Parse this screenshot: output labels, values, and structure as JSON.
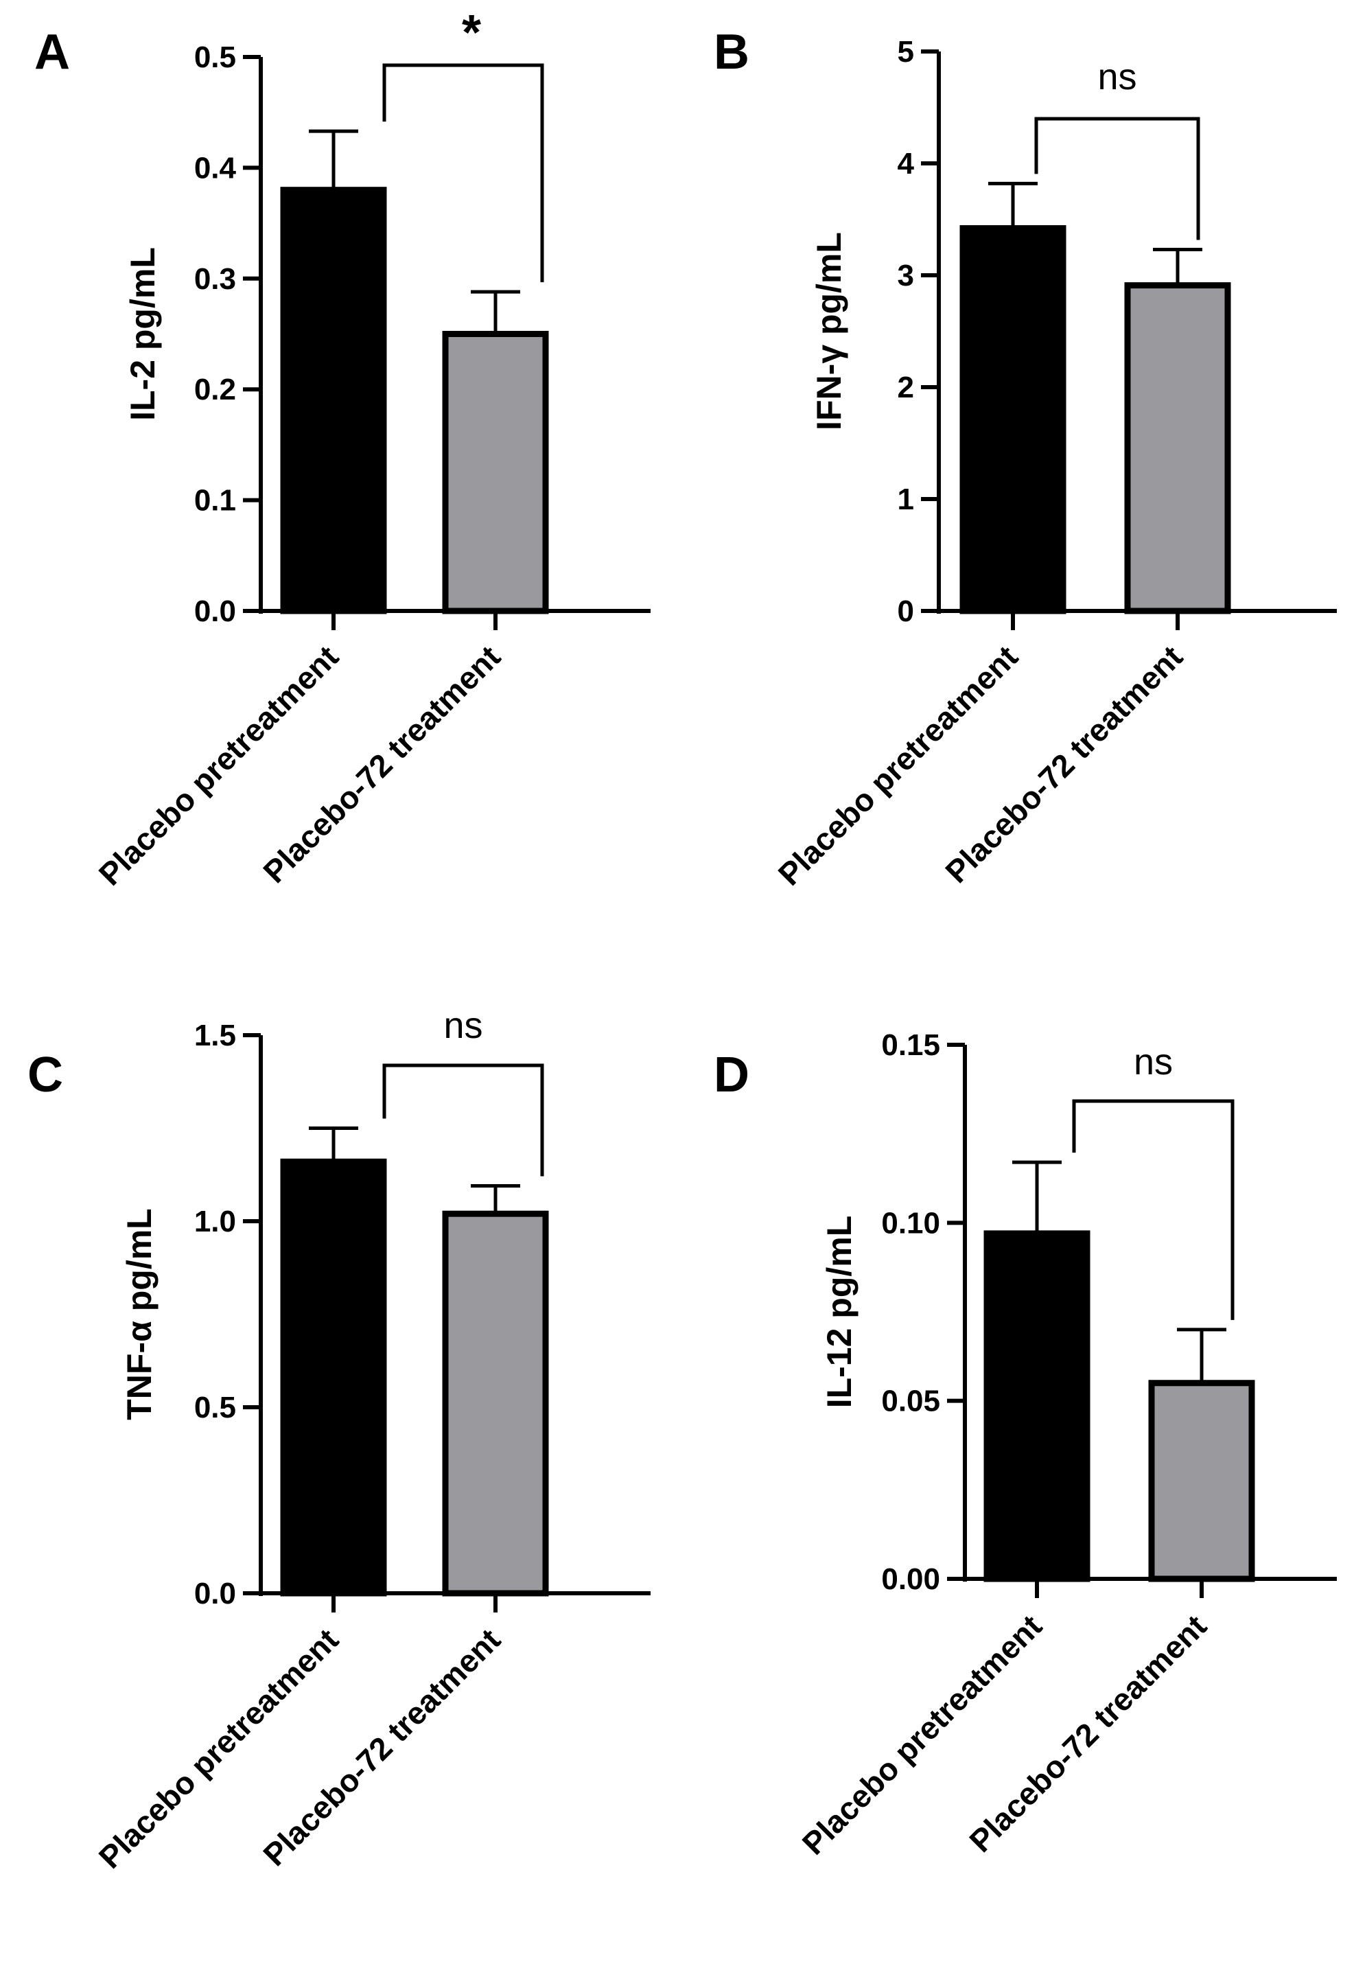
{
  "chart_data": [
    {
      "panel": "A",
      "type": "bar",
      "ylabel": "IL-2 pg/mL",
      "ylim": [
        0,
        0.5
      ],
      "ticks": [
        "0.0",
        "0.1",
        "0.2",
        "0.3",
        "0.4",
        "0.5"
      ],
      "categories": [
        "Placebo pretreatment",
        "Placebo-72 treatment"
      ],
      "values": [
        0.38,
        0.25
      ],
      "errors": [
        0.053,
        0.038
      ],
      "colors": [
        "#000000",
        "#9a9a9e"
      ],
      "significance": "*"
    },
    {
      "panel": "B",
      "type": "bar",
      "ylabel": "IFN-γ pg/mL",
      "ylim": [
        0,
        5
      ],
      "ticks": [
        "0",
        "1",
        "2",
        "3",
        "4",
        "5"
      ],
      "categories": [
        "Placebo pretreatment",
        "Placebo-72 treatment"
      ],
      "values": [
        3.42,
        2.91
      ],
      "errors": [
        0.4,
        0.32
      ],
      "colors": [
        "#000000",
        "#9a9a9e"
      ],
      "significance": "ns"
    },
    {
      "panel": "C",
      "type": "bar",
      "ylabel": "TNF-α pg/mL",
      "ylim": [
        0,
        1.5
      ],
      "ticks": [
        "0.0",
        "0.5",
        "1.0",
        "1.5"
      ],
      "categories": [
        "Placebo pretreatment",
        "Placebo-72 treatment"
      ],
      "values": [
        1.16,
        1.02
      ],
      "errors": [
        0.09,
        0.075
      ],
      "colors": [
        "#000000",
        "#9a9a9e"
      ],
      "significance": "ns"
    },
    {
      "panel": "D",
      "type": "bar",
      "ylabel": "IL-12 pg/mL",
      "ylim": [
        0,
        0.15
      ],
      "ticks": [
        "0.00",
        "0.05",
        "0.10",
        "0.15"
      ],
      "categories": [
        "Placebo pretreatment",
        "Placebo-72 treatment"
      ],
      "values": [
        0.097,
        0.055
      ],
      "errors": [
        0.02,
        0.015
      ],
      "colors": [
        "#000000",
        "#9a9a9e"
      ],
      "significance": "ns"
    }
  ]
}
